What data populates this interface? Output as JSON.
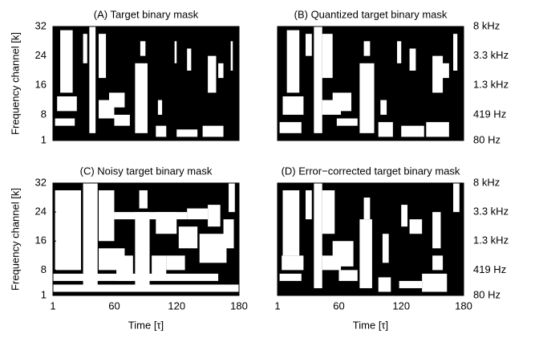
{
  "chart_data": [
    {
      "type": "heatmap",
      "title": "(A) Target binary mask",
      "ylabel": "Frequency channel [k]",
      "xlim": [
        1,
        180
      ],
      "ylim": [
        1,
        32
      ],
      "yticks": [
        1,
        8,
        16,
        24,
        32
      ],
      "background": "#000000",
      "color": "#ffffff",
      "cells": [
        [
          8,
          20,
          14,
          31
        ],
        [
          5,
          24,
          9,
          13
        ],
        [
          3,
          22,
          5,
          7
        ],
        [
          36,
          42,
          3,
          32
        ],
        [
          30,
          34,
          22,
          30
        ],
        [
          45,
          52,
          18,
          30
        ],
        [
          45,
          60,
          7,
          12
        ],
        [
          55,
          70,
          10,
          14
        ],
        [
          60,
          75,
          5,
          8
        ],
        [
          80,
          92,
          3,
          22
        ],
        [
          85,
          90,
          24,
          28
        ],
        [
          100,
          110,
          2,
          5
        ],
        [
          102,
          106,
          8,
          12
        ],
        [
          118,
          120,
          22,
          28
        ],
        [
          120,
          140,
          2,
          4
        ],
        [
          130,
          134,
          20,
          26
        ],
        [
          145,
          165,
          2,
          5
        ],
        [
          150,
          158,
          14,
          24
        ],
        [
          160,
          165,
          18,
          22
        ],
        [
          172,
          174,
          20,
          28
        ]
      ]
    },
    {
      "type": "heatmap",
      "title": "(B) Quantized target binary mask",
      "xlim": [
        1,
        180
      ],
      "ylim": [
        1,
        32
      ],
      "y2lim": [
        1,
        32
      ],
      "y2ticks": [
        {
          "value": 32,
          "label": "8 kHz"
        },
        {
          "value": 24,
          "label": "3.3 kHz"
        },
        {
          "value": 16,
          "label": "1.3 kHz"
        },
        {
          "value": 8,
          "label": "419 Hz"
        },
        {
          "value": 1,
          "label": "80 Hz"
        }
      ],
      "background": "#000000",
      "color": "#ffffff",
      "cells": [
        [
          10,
          22,
          14,
          31
        ],
        [
          6,
          26,
          8,
          13
        ],
        [
          3,
          24,
          3,
          6
        ],
        [
          36,
          44,
          3,
          32
        ],
        [
          28,
          34,
          24,
          30
        ],
        [
          44,
          54,
          18,
          30
        ],
        [
          44,
          62,
          8,
          12
        ],
        [
          54,
          72,
          9,
          14
        ],
        [
          58,
          78,
          5,
          7
        ],
        [
          80,
          94,
          3,
          22
        ],
        [
          84,
          90,
          24,
          28
        ],
        [
          98,
          112,
          2,
          6
        ],
        [
          100,
          106,
          8,
          12
        ],
        [
          116,
          120,
          22,
          28
        ],
        [
          120,
          142,
          2,
          5
        ],
        [
          128,
          134,
          20,
          26
        ],
        [
          144,
          166,
          2,
          6
        ],
        [
          150,
          160,
          14,
          24
        ],
        [
          158,
          166,
          18,
          22
        ],
        [
          170,
          174,
          20,
          30
        ]
      ]
    },
    {
      "type": "heatmap",
      "title": "(C) Noisy target binary mask",
      "xlabel": "Time [τ]",
      "ylabel": "Frequency channel [k]",
      "xlim": [
        1,
        180
      ],
      "ylim": [
        1,
        32
      ],
      "xticks": [
        1,
        60,
        120,
        180
      ],
      "yticks": [
        1,
        8,
        16,
        24,
        32
      ],
      "background": "#000000",
      "color": "#ffffff",
      "cells": [
        [
          1,
          180,
          2,
          4
        ],
        [
          1,
          160,
          5,
          7
        ],
        [
          3,
          28,
          8,
          30
        ],
        [
          30,
          44,
          3,
          32
        ],
        [
          45,
          60,
          16,
          30
        ],
        [
          45,
          70,
          8,
          14
        ],
        [
          62,
          78,
          5,
          12
        ],
        [
          80,
          94,
          3,
          24
        ],
        [
          84,
          92,
          25,
          30
        ],
        [
          96,
          110,
          6,
          12
        ],
        [
          100,
          120,
          18,
          24
        ],
        [
          110,
          128,
          8,
          12
        ],
        [
          122,
          140,
          14,
          20
        ],
        [
          130,
          150,
          22,
          25
        ],
        [
          142,
          168,
          10,
          18
        ],
        [
          150,
          162,
          20,
          26
        ],
        [
          165,
          175,
          14,
          22
        ],
        [
          170,
          176,
          24,
          32
        ],
        [
          10,
          24,
          22,
          24
        ],
        [
          60,
          130,
          22,
          24
        ]
      ]
    },
    {
      "type": "heatmap",
      "title": "(D) Error−corrected target binary mask",
      "xlabel": "Time [τ]",
      "xlim": [
        1,
        180
      ],
      "ylim": [
        1,
        32
      ],
      "xticks": [
        1,
        60,
        120,
        180
      ],
      "y2lim": [
        1,
        32
      ],
      "y2ticks": [
        {
          "value": 32,
          "label": "8 kHz"
        },
        {
          "value": 24,
          "label": "3.3 kHz"
        },
        {
          "value": 16,
          "label": "1.3 kHz"
        },
        {
          "value": 8,
          "label": "419 Hz"
        },
        {
          "value": 1,
          "label": "80 Hz"
        }
      ],
      "background": "#000000",
      "color": "#ffffff",
      "cells": [
        [
          6,
          22,
          12,
          30
        ],
        [
          5,
          26,
          8,
          12
        ],
        [
          3,
          24,
          5,
          7
        ],
        [
          36,
          44,
          3,
          32
        ],
        [
          28,
          34,
          22,
          30
        ],
        [
          44,
          56,
          18,
          30
        ],
        [
          44,
          62,
          8,
          12
        ],
        [
          54,
          74,
          9,
          16
        ],
        [
          60,
          78,
          5,
          8
        ],
        [
          80,
          92,
          3,
          22
        ],
        [
          84,
          90,
          22,
          28
        ],
        [
          98,
          110,
          2,
          6
        ],
        [
          102,
          108,
          10,
          18
        ],
        [
          120,
          126,
          20,
          26
        ],
        [
          118,
          140,
          3,
          5
        ],
        [
          128,
          140,
          18,
          22
        ],
        [
          140,
          164,
          2,
          7
        ],
        [
          150,
          160,
          8,
          12
        ],
        [
          150,
          158,
          14,
          24
        ],
        [
          170,
          176,
          24,
          32
        ]
      ]
    }
  ]
}
